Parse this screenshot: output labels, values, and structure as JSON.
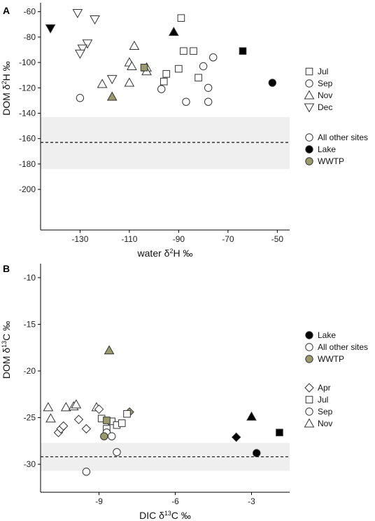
{
  "chart_data": [
    {
      "panel": "A",
      "type": "scatter",
      "xlabel": "water δ2H ‰",
      "ylabel": "DOM δ2H ‰",
      "xlim": [
        -146,
        -45
      ],
      "ylim": [
        -232,
        -53
      ],
      "xticks": [
        -130,
        -110,
        -90,
        -70,
        -50
      ],
      "yticks": [
        -60,
        -80,
        -100,
        -120,
        -140,
        -160,
        -180,
        -200
      ],
      "reference_line": -163,
      "band": [
        -184,
        -143
      ],
      "legend_shapes": [
        {
          "label": "Jul",
          "shape": "square"
        },
        {
          "label": "Sep",
          "shape": "circle"
        },
        {
          "label": "Nov",
          "shape": "triangle"
        },
        {
          "label": "Dec",
          "shape": "invtriangle"
        }
      ],
      "legend_fills": [
        {
          "label": "All other sites",
          "fill": "#ffffff"
        },
        {
          "label": "Lake",
          "fill": "#000000"
        },
        {
          "label": "WWTP",
          "fill": "#9a9a6a"
        }
      ],
      "points": [
        {
          "x": -131,
          "y": -61,
          "s": "invtriangle",
          "f": "other"
        },
        {
          "x": -124,
          "y": -66,
          "s": "invtriangle",
          "f": "other"
        },
        {
          "x": -127,
          "y": -85,
          "s": "invtriangle",
          "f": "other"
        },
        {
          "x": -129,
          "y": -89,
          "s": "invtriangle",
          "f": "other"
        },
        {
          "x": -130,
          "y": -93,
          "s": "invtriangle",
          "f": "other"
        },
        {
          "x": -117,
          "y": -113,
          "s": "invtriangle",
          "f": "other"
        },
        {
          "x": -142,
          "y": -73,
          "s": "invtriangle",
          "f": "lake"
        },
        {
          "x": -121,
          "y": -117,
          "s": "triangle",
          "f": "other"
        },
        {
          "x": -108,
          "y": -87,
          "s": "triangle",
          "f": "other"
        },
        {
          "x": -110,
          "y": -100,
          "s": "triangle",
          "f": "other"
        },
        {
          "x": -109,
          "y": -103,
          "s": "triangle",
          "f": "other"
        },
        {
          "x": -110,
          "y": -116,
          "s": "triangle",
          "f": "other"
        },
        {
          "x": -103,
          "y": -104,
          "s": "triangle",
          "f": "other"
        },
        {
          "x": -103,
          "y": -107,
          "s": "triangle",
          "f": "other"
        },
        {
          "x": -92,
          "y": -76,
          "s": "triangle",
          "f": "lake"
        },
        {
          "x": -117,
          "y": -127,
          "s": "triangle",
          "f": "wwtp"
        },
        {
          "x": -89,
          "y": -65,
          "s": "square",
          "f": "other"
        },
        {
          "x": -88,
          "y": -91,
          "s": "square",
          "f": "other"
        },
        {
          "x": -84,
          "y": -91,
          "s": "square",
          "f": "other"
        },
        {
          "x": -90,
          "y": -105,
          "s": "square",
          "f": "other"
        },
        {
          "x": -95,
          "y": -109,
          "s": "square",
          "f": "other"
        },
        {
          "x": -96,
          "y": -115,
          "s": "square",
          "f": "other"
        },
        {
          "x": -82,
          "y": -112,
          "s": "square",
          "f": "other"
        },
        {
          "x": -64,
          "y": -91,
          "s": "square",
          "f": "lake"
        },
        {
          "x": -104,
          "y": -104,
          "s": "square",
          "f": "wwtp"
        },
        {
          "x": -76,
          "y": -96,
          "s": "circle",
          "f": "other"
        },
        {
          "x": -80,
          "y": -103,
          "s": "circle",
          "f": "other"
        },
        {
          "x": -78,
          "y": -120,
          "s": "circle",
          "f": "other"
        },
        {
          "x": -97,
          "y": -121,
          "s": "circle",
          "f": "other"
        },
        {
          "x": -130,
          "y": -128,
          "s": "circle",
          "f": "other"
        },
        {
          "x": -87,
          "y": -131,
          "s": "circle",
          "f": "other"
        },
        {
          "x": -78,
          "y": -131,
          "s": "circle",
          "f": "other"
        },
        {
          "x": -52,
          "y": -116,
          "s": "circle",
          "f": "lake"
        }
      ]
    },
    {
      "panel": "B",
      "type": "scatter",
      "xlabel": "DIC δ13C ‰",
      "ylabel": "DOM δ13C ‰",
      "xlim": [
        -11.3,
        -1.5
      ],
      "ylim": [
        -33,
        -8.5
      ],
      "xticks": [
        -9,
        -6,
        -3
      ],
      "yticks": [
        -10,
        -15,
        -20,
        -25,
        -30
      ],
      "reference_line": -29.2,
      "band": [
        -30.7,
        -27.7
      ],
      "legend_fills": [
        {
          "label": "Lake",
          "fill": "#000000"
        },
        {
          "label": "All other sites",
          "fill": "#ffffff"
        },
        {
          "label": "WWTP",
          "fill": "#9a9a6a"
        }
      ],
      "legend_shapes": [
        {
          "label": "Apr",
          "shape": "diamond"
        },
        {
          "label": "Jul",
          "shape": "square"
        },
        {
          "label": "Sep",
          "shape": "circle"
        },
        {
          "label": "Nov",
          "shape": "triangle"
        }
      ],
      "points": [
        {
          "x": -11.0,
          "y": -23.9,
          "s": "triangle",
          "f": "other"
        },
        {
          "x": -10.9,
          "y": -25.1,
          "s": "triangle",
          "f": "other"
        },
        {
          "x": -10.3,
          "y": -23.9,
          "s": "triangle",
          "f": "other"
        },
        {
          "x": -10.0,
          "y": -23.8,
          "s": "triangle",
          "f": "other"
        },
        {
          "x": -9.9,
          "y": -23.6,
          "s": "triangle",
          "f": "other"
        },
        {
          "x": -9.1,
          "y": -23.9,
          "s": "triangle",
          "f": "other"
        },
        {
          "x": -3.0,
          "y": -24.9,
          "s": "triangle",
          "f": "lake"
        },
        {
          "x": -8.6,
          "y": -17.8,
          "s": "triangle",
          "f": "wwtp"
        },
        {
          "x": -10.6,
          "y": -26.6,
          "s": "diamond",
          "f": "other"
        },
        {
          "x": -10.5,
          "y": -26.2,
          "s": "diamond",
          "f": "other"
        },
        {
          "x": -10.4,
          "y": -25.9,
          "s": "diamond",
          "f": "other"
        },
        {
          "x": -9.8,
          "y": -25.2,
          "s": "diamond",
          "f": "other"
        },
        {
          "x": -9.5,
          "y": -26.2,
          "s": "diamond",
          "f": "other"
        },
        {
          "x": -9.0,
          "y": -24.1,
          "s": "diamond",
          "f": "other"
        },
        {
          "x": -3.6,
          "y": -27.1,
          "s": "diamond",
          "f": "lake"
        },
        {
          "x": -7.8,
          "y": -24.4,
          "s": "diamond",
          "f": "wwtp"
        },
        {
          "x": -8.9,
          "y": -25.1,
          "s": "square",
          "f": "other"
        },
        {
          "x": -8.5,
          "y": -25.4,
          "s": "square",
          "f": "other"
        },
        {
          "x": -8.3,
          "y": -25.8,
          "s": "square",
          "f": "other"
        },
        {
          "x": -8.1,
          "y": -25.6,
          "s": "square",
          "f": "other"
        },
        {
          "x": -7.9,
          "y": -24.6,
          "s": "square",
          "f": "other"
        },
        {
          "x": -8.7,
          "y": -26.2,
          "s": "square",
          "f": "other"
        },
        {
          "x": -1.9,
          "y": -26.6,
          "s": "square",
          "f": "lake"
        },
        {
          "x": -8.7,
          "y": -25.3,
          "s": "square",
          "f": "wwtp"
        },
        {
          "x": -8.7,
          "y": -26.6,
          "s": "circle",
          "f": "other"
        },
        {
          "x": -8.5,
          "y": -27.0,
          "s": "circle",
          "f": "other"
        },
        {
          "x": -8.3,
          "y": -28.7,
          "s": "circle",
          "f": "other"
        },
        {
          "x": -9.5,
          "y": -30.8,
          "s": "circle",
          "f": "other"
        },
        {
          "x": -2.8,
          "y": -28.8,
          "s": "circle",
          "f": "lake"
        },
        {
          "x": -8.8,
          "y": -27.0,
          "s": "circle",
          "f": "wwtp"
        }
      ]
    }
  ],
  "colors": {
    "lake": "#000000",
    "wwtp": "#9a9a6a",
    "other": "#ffffff",
    "band": "#efefef"
  }
}
